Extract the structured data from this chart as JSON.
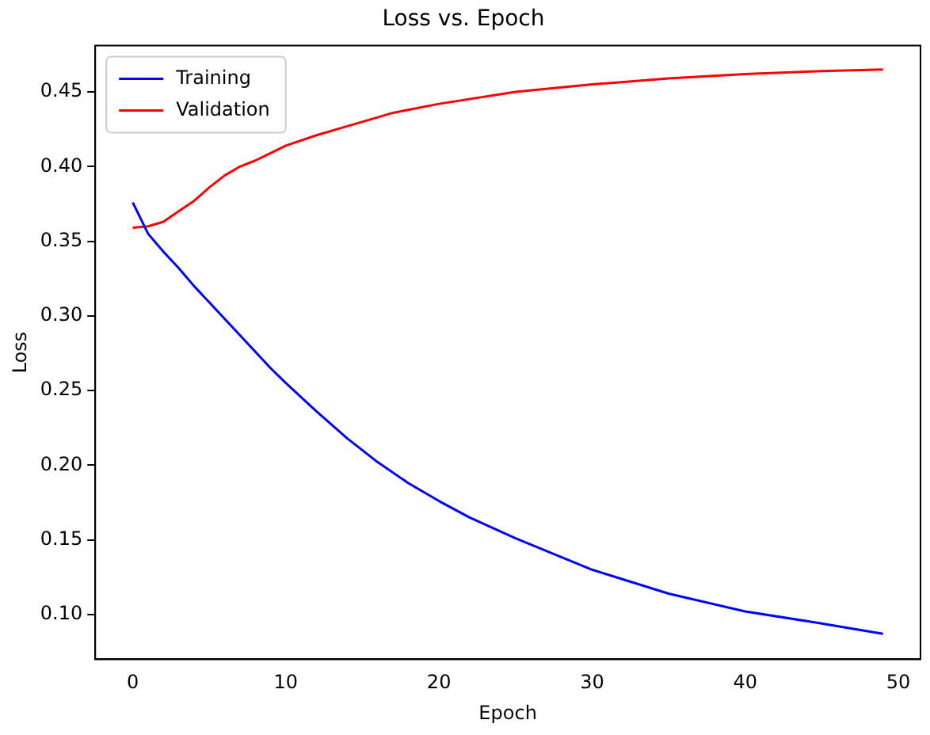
{
  "chart_data": {
    "type": "line",
    "title": "Loss vs. Epoch",
    "xlabel": "Epoch",
    "ylabel": "Loss",
    "xlim": [
      -2.45,
      51.45
    ],
    "xticks": [
      0,
      10,
      20,
      30,
      40,
      50
    ],
    "ylim": [
      0.07,
      0.481
    ],
    "yticks": [
      {
        "value": 0.1,
        "label": "0.10"
      },
      0.15,
      {
        "value": 0.2,
        "label": "0.20"
      },
      0.25,
      {
        "value": 0.3,
        "label": "0.30"
      },
      0.35,
      {
        "value": 0.4,
        "label": "0.40"
      },
      0.45
    ],
    "series": [
      {
        "name": "Training",
        "color": "#0000ff",
        "x": [
          0,
          1,
          2,
          3,
          4,
          5,
          6,
          7,
          8,
          9,
          10,
          12,
          14,
          16,
          18,
          20,
          22,
          25,
          30,
          35,
          40,
          45,
          49
        ],
        "values": [
          0.376,
          0.355,
          0.343,
          0.332,
          0.32,
          0.309,
          0.298,
          0.287,
          0.276,
          0.265,
          0.255,
          0.236,
          0.218,
          0.202,
          0.188,
          0.176,
          0.165,
          0.151,
          0.13,
          0.114,
          0.102,
          0.094,
          0.087
        ]
      },
      {
        "name": "Validation",
        "color": "#ff0000",
        "x": [
          0,
          1,
          2,
          3,
          4,
          5,
          6,
          7,
          8,
          9,
          10,
          12,
          14,
          16,
          17,
          20,
          25,
          30,
          35,
          40,
          45,
          49
        ],
        "values": [
          0.359,
          0.36,
          0.363,
          0.37,
          0.377,
          0.386,
          0.394,
          0.4,
          0.404,
          0.409,
          0.414,
          0.421,
          0.427,
          0.433,
          0.436,
          0.442,
          0.45,
          0.455,
          0.459,
          0.462,
          0.464,
          0.465
        ]
      }
    ],
    "legend": "top left",
    "grid": false,
    "marker": "none",
    "line_style": "solid"
  }
}
